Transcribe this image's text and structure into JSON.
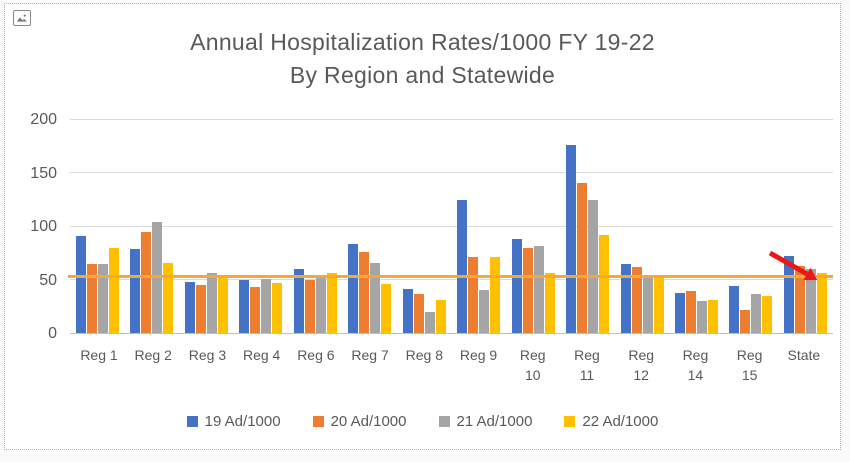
{
  "frame": {
    "selection_border_color": "#8fb9c9",
    "corner_icon": "image-placeholder-icon"
  },
  "chart_data": {
    "type": "bar",
    "title": "Annual Hospitalization Rates/1000 FY 19-22",
    "subtitle": "By Region and Statewide",
    "categories": [
      "Reg 1",
      "Reg 2",
      "Reg 3",
      "Reg 4",
      "Reg 6",
      "Reg 7",
      "Reg 8",
      "Reg 9",
      "Reg 10",
      "Reg 11",
      "Reg 12",
      "Reg 14",
      "Reg 15",
      "State"
    ],
    "two_line_categories": [
      "Reg 10",
      "Reg 11",
      "Reg 12",
      "Reg 14",
      "Reg 15"
    ],
    "series": [
      {
        "name": "19 Ad/1000",
        "color": "#4472C4",
        "values": [
          91,
          79,
          48,
          50,
          60,
          84,
          41,
          125,
          88,
          177,
          65,
          38,
          44,
          72
        ]
      },
      {
        "name": "20 Ad/1000",
        "color": "#ED7D31",
        "values": [
          65,
          95,
          45,
          43,
          50,
          76,
          37,
          71,
          80,
          141,
          62,
          39,
          22,
          63
        ]
      },
      {
        "name": "21 Ad/1000",
        "color": "#A5A5A5",
        "values": [
          65,
          104,
          56,
          51,
          52,
          66,
          20,
          40,
          82,
          125,
          53,
          30,
          37,
          60
        ]
      },
      {
        "name": "22 Ad/1000",
        "color": "#FFC000",
        "values": [
          80,
          66,
          54,
          47,
          56,
          46,
          31,
          71,
          56,
          92,
          54,
          31,
          35,
          56
        ]
      }
    ],
    "xlabel": "",
    "ylabel": "",
    "ylim": [
      0,
      200
    ],
    "yticks": [
      0,
      50,
      100,
      150,
      200
    ],
    "grid": true,
    "legend_position": "bottom",
    "text_color": "#595959",
    "reference_line": {
      "value": 53,
      "color": "#F2A83A"
    },
    "annotation": {
      "type": "declining-trend-arrow",
      "color": "#ED1515",
      "over_category": "State"
    }
  }
}
